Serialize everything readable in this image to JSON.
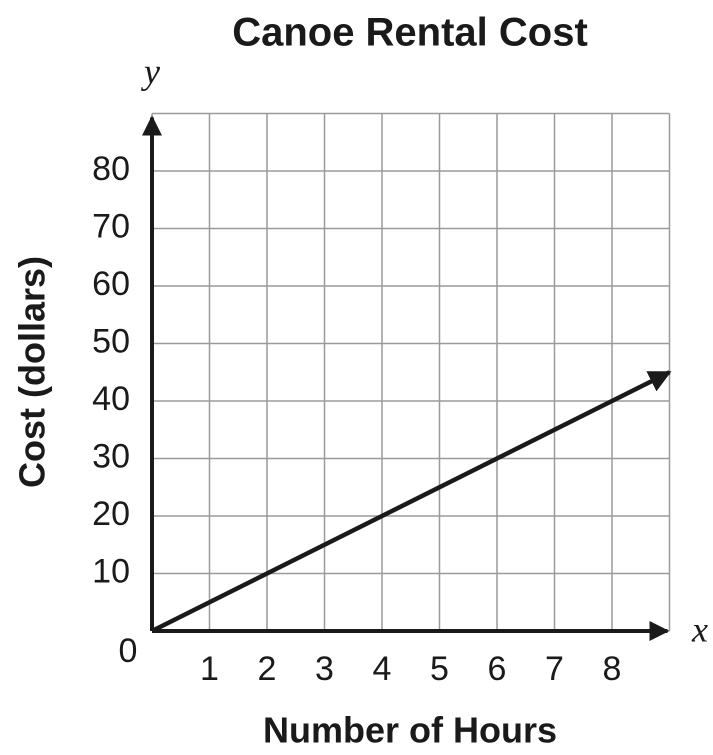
{
  "chart_data": {
    "type": "line",
    "title": "Canoe Rental Cost",
    "x_label": "Number of Hours",
    "y_label": "Cost (dollars)",
    "x_axis_name": "x",
    "y_axis_name": "y",
    "x": [
      0,
      9
    ],
    "y": [
      0,
      45
    ],
    "color": "#1a1a1a",
    "xlim": [
      0,
      9
    ],
    "ylim": [
      0,
      90
    ],
    "xticks": [
      0,
      1,
      2,
      3,
      4,
      5,
      6,
      7,
      8
    ],
    "yticks": [
      10,
      20,
      30,
      40,
      50,
      60,
      70,
      80
    ],
    "grid": true
  }
}
